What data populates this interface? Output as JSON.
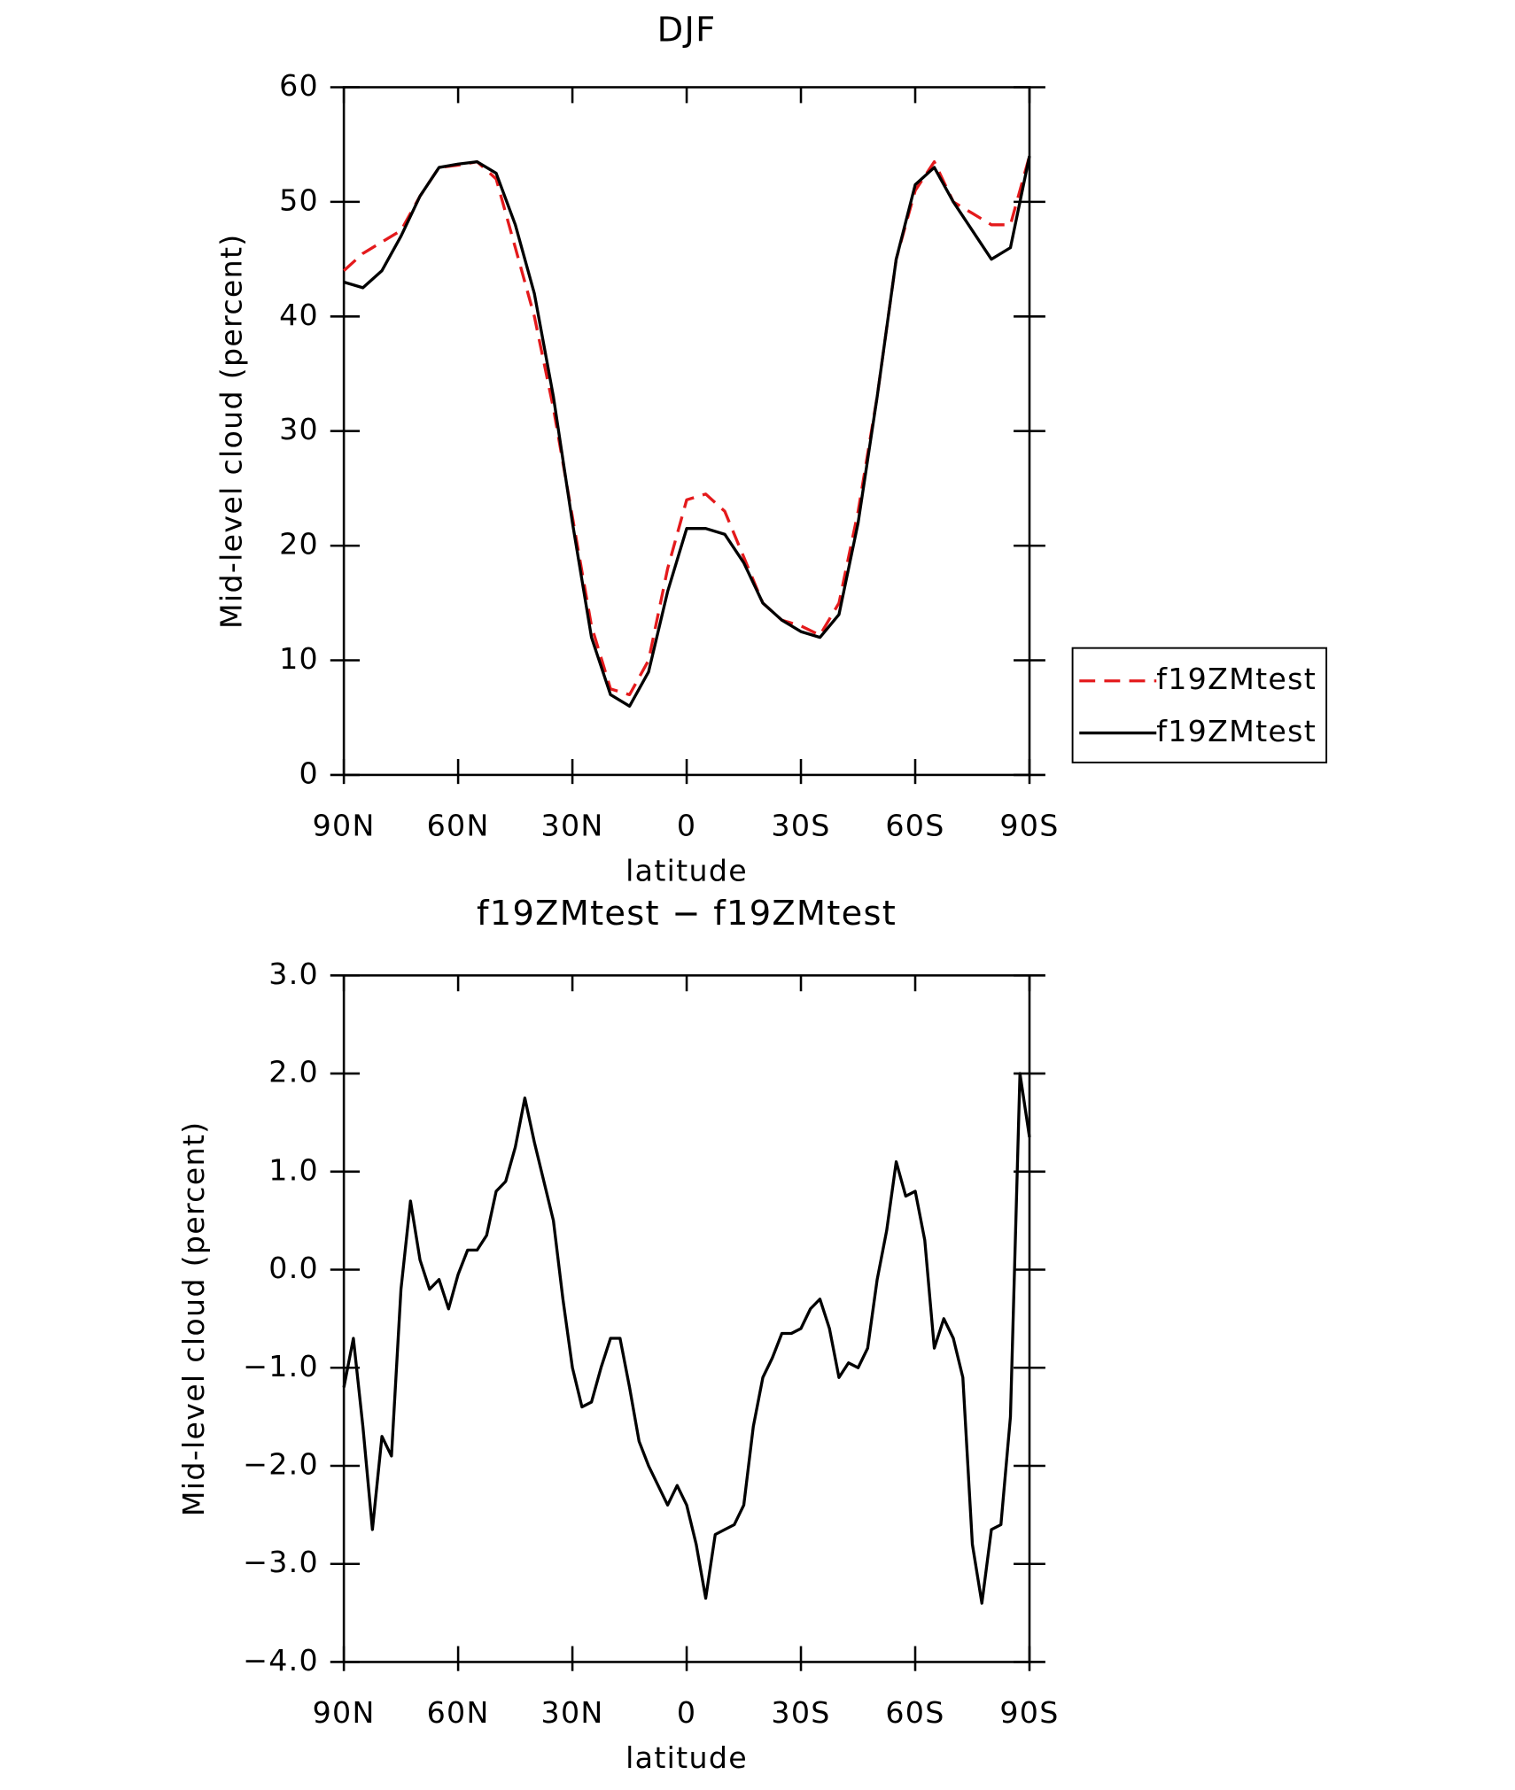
{
  "chart_data": [
    {
      "type": "line",
      "title": "DJF",
      "xlabel": "latitude",
      "ylabel": "Mid-level cloud (percent)",
      "x": [
        90,
        85,
        80,
        75,
        70,
        65,
        60,
        55,
        50,
        45,
        40,
        35,
        30,
        25,
        20,
        15,
        10,
        5,
        0,
        -5,
        -10,
        -15,
        -20,
        -25,
        -30,
        -35,
        -40,
        -45,
        -50,
        -55,
        -60,
        -65,
        -70,
        -75,
        -80,
        -85,
        -90
      ],
      "xlim": [
        90,
        -90
      ],
      "xticks": [
        {
          "value": 90,
          "label": "90N"
        },
        {
          "value": 60,
          "label": "60N"
        },
        {
          "value": 30,
          "label": "30N"
        },
        0,
        {
          "value": -30,
          "label": "30S"
        },
        {
          "value": -60,
          "label": "60S"
        },
        {
          "value": -90,
          "label": "90S"
        }
      ],
      "ylim": [
        0,
        60
      ],
      "yticks": [
        0,
        10,
        20,
        30,
        40,
        50,
        60
      ],
      "legend": "outside-right",
      "series": [
        {
          "name": "f19ZMtest",
          "color": "#e41a1c",
          "dash": true,
          "values": [
            44,
            45.5,
            46.5,
            47.5,
            50.5,
            53,
            53.2,
            53.5,
            52,
            46,
            40,
            32,
            22.5,
            13,
            7.5,
            7,
            10,
            18,
            24,
            24.5,
            23,
            19,
            15,
            13.5,
            13,
            12.2,
            15,
            23,
            33,
            45,
            51,
            53.5,
            50,
            49,
            48,
            48,
            54
          ]
        },
        {
          "name": "f19ZMtest",
          "color": "#000000",
          "dash": false,
          "values": [
            43,
            42.5,
            44,
            47,
            50.5,
            53,
            53.3,
            53.5,
            52.5,
            48,
            42,
            33,
            22,
            12,
            7,
            6,
            9,
            16,
            21.5,
            21.5,
            21,
            18.5,
            15,
            13.5,
            12.5,
            12,
            14,
            22,
            33,
            45,
            51.5,
            53,
            50,
            47.5,
            45,
            46,
            54
          ]
        }
      ]
    },
    {
      "type": "line",
      "title": "f19ZMtest − f19ZMtest",
      "xlabel": "latitude",
      "ylabel": "Mid-level cloud (percent)",
      "x": [
        90,
        87.5,
        85,
        82.5,
        80,
        77.5,
        75,
        72.5,
        70,
        67.5,
        65,
        62.5,
        60,
        57.5,
        55,
        52.5,
        50,
        47.5,
        45,
        42.5,
        40,
        37.5,
        35,
        32.5,
        30,
        27.5,
        25,
        22.5,
        20,
        17.5,
        15,
        12.5,
        10,
        7.5,
        5,
        2.5,
        0,
        -2.5,
        -5,
        -7.5,
        -10,
        -12.5,
        -15,
        -17.5,
        -20,
        -22.5,
        -25,
        -27.5,
        -30,
        -32.5,
        -35,
        -37.5,
        -40,
        -42.5,
        -45,
        -47.5,
        -50,
        -52.5,
        -55,
        -57.5,
        -60,
        -62.5,
        -65,
        -67.5,
        -70,
        -72.5,
        -75,
        -77.5,
        -80,
        -82.5,
        -85,
        -87.5,
        -90
      ],
      "xlim": [
        90,
        -90
      ],
      "xticks": [
        {
          "value": 90,
          "label": "90N"
        },
        {
          "value": 60,
          "label": "60N"
        },
        {
          "value": 30,
          "label": "30N"
        },
        0,
        {
          "value": -30,
          "label": "30S"
        },
        {
          "value": -60,
          "label": "60S"
        },
        {
          "value": -90,
          "label": "90S"
        }
      ],
      "ylim": [
        -4,
        3
      ],
      "yticks": [
        {
          "value": -4,
          "label": "−4.0"
        },
        {
          "value": -3,
          "label": "−3.0"
        },
        {
          "value": -2,
          "label": "−2.0"
        },
        {
          "value": -1,
          "label": "−1.0"
        },
        {
          "value": 0,
          "label": "0.0"
        },
        {
          "value": 1,
          "label": "1.0"
        },
        {
          "value": 2,
          "label": "2.0"
        },
        {
          "value": 3,
          "label": "3.0"
        }
      ],
      "series": [
        {
          "color": "#000000",
          "dash": false,
          "values": [
            -1.2,
            -0.7,
            -1.6,
            -2.65,
            -1.7,
            -1.9,
            -0.2,
            0.7,
            0.1,
            -0.2,
            -0.1,
            -0.4,
            -0.05,
            0.2,
            0.2,
            0.35,
            0.8,
            0.9,
            1.25,
            1.75,
            1.3,
            0.9,
            0.5,
            -0.3,
            -1.0,
            -1.4,
            -1.35,
            -1.0,
            -0.7,
            -0.7,
            -1.2,
            -1.75,
            -2.0,
            -2.2,
            -2.4,
            -2.2,
            -2.4,
            -2.8,
            -3.35,
            -2.7,
            -2.65,
            -2.6,
            -2.4,
            -1.6,
            -1.1,
            -0.9,
            -0.65,
            -0.65,
            -0.6,
            -0.4,
            -0.3,
            -0.6,
            -1.1,
            -0.95,
            -1.0,
            -0.8,
            -0.1,
            0.4,
            1.1,
            0.75,
            0.8,
            0.3,
            -0.8,
            -0.5,
            -0.7,
            -1.1,
            -2.8,
            -3.4,
            -2.65,
            -2.6,
            -1.5,
            2.0,
            1.35
          ]
        }
      ]
    }
  ]
}
